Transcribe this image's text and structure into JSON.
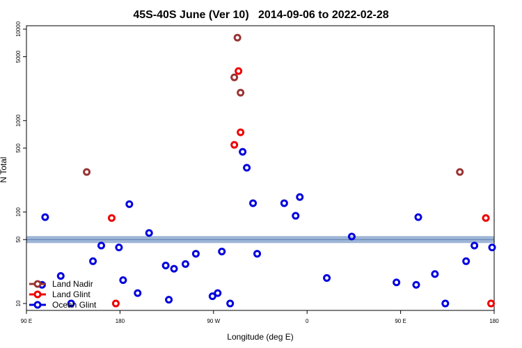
{
  "chart_data": {
    "type": "scatter",
    "title": "45S-40S June (Ver 10)   2014-09-06 to 2022-02-28",
    "x_label": "Longitude (deg E)",
    "y_label": "N Total",
    "log_y": true,
    "xlim": [
      90,
      540
    ],
    "ylim": [
      8.4,
      10900
    ],
    "xticks": [
      {
        "value": 90,
        "label": "90 E"
      },
      180,
      {
        "value": 270,
        "label": "90 W"
      },
      {
        "value": 360,
        "label": "0"
      },
      {
        "value": 450,
        "label": "90 E"
      },
      {
        "value": 540,
        "label": "180"
      }
    ],
    "yticks": [
      10,
      50,
      100,
      500,
      1000,
      5000,
      10000
    ],
    "hline": 50,
    "legend": "bottom-left",
    "series": [
      {
        "name": "Land Nadir",
        "color": "#993333",
        "x": [
          148,
          293,
          290,
          296,
          507
        ],
        "values": [
          274,
          8070,
          2970,
          2020,
          274
        ]
      },
      {
        "name": "Land Glint",
        "color": "#ee0000",
        "x": [
          172,
          176,
          290,
          294,
          296,
          532,
          537
        ],
        "values": [
          86,
          10,
          543,
          3480,
          745,
          86,
          10
        ]
      },
      {
        "name": "Ocean Glint",
        "color": "#0000dd",
        "x": [
          108,
          105,
          123,
          133,
          154,
          162,
          179,
          183,
          189,
          197,
          208,
          224,
          227,
          232,
          243,
          253,
          269,
          274,
          278,
          286,
          298,
          302,
          308,
          312,
          338,
          349,
          353,
          379,
          403,
          446,
          465,
          467,
          483,
          493,
          513,
          521,
          538
        ],
        "values": [
          88,
          16,
          20,
          10,
          29,
          43,
          41,
          18,
          122,
          13,
          59,
          26,
          11,
          24,
          27,
          35,
          12,
          13,
          37,
          10,
          456,
          305,
          125,
          35,
          125,
          91,
          146,
          19,
          54,
          17,
          16,
          88,
          21,
          10,
          29,
          43,
          41
        ]
      }
    ]
  }
}
